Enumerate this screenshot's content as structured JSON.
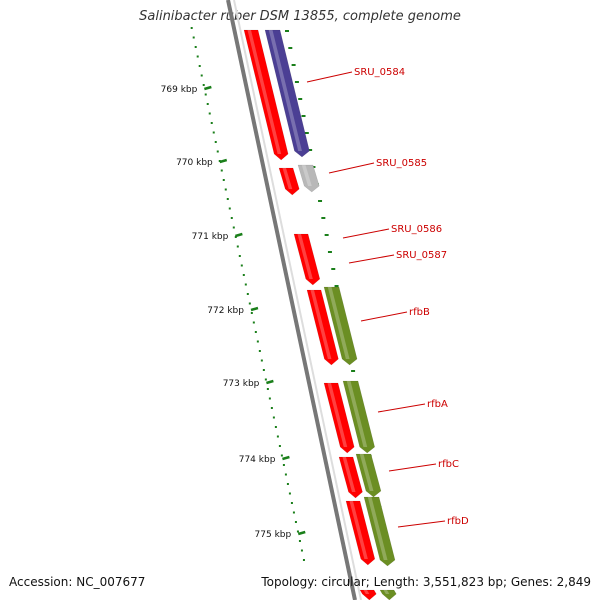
{
  "title": "Salinibacter ruber DSM 13855, complete genome",
  "accession_text": "Accession: NC_007677",
  "summary_text": "Topology: circular; Length: 3,551,823 bp; Genes: 2,849",
  "colors": {
    "cds_red": "#ff0000",
    "cds_purple": "#4b3f94",
    "cds_gray": "#b8b8b8",
    "cds_olive": "#6b8e23",
    "backbone": "#777777",
    "tick_green": "#1a7f1a",
    "label_red": "#cc0000"
  },
  "scale_labels": [
    {
      "text": "769 kbp",
      "kbp": 769
    },
    {
      "text": "770 kbp",
      "kbp": 770
    },
    {
      "text": "771 kbp",
      "kbp": 771
    },
    {
      "text": "772 kbp",
      "kbp": 772
    },
    {
      "text": "773 kbp",
      "kbp": 773
    },
    {
      "text": "774 kbp",
      "kbp": 774
    },
    {
      "text": "775 kbp",
      "kbp": 775
    }
  ],
  "genes": [
    {
      "label": "SRU_0584",
      "color": "purple"
    },
    {
      "label": "SRU_0585",
      "color": "gray"
    },
    {
      "label": "SRU_0586",
      "color": "red"
    },
    {
      "label": "SRU_0587",
      "color": "red"
    },
    {
      "label": "rfbB",
      "color": "olive"
    },
    {
      "label": "rfbA",
      "color": "olive"
    },
    {
      "label": "rfbC",
      "color": "olive"
    },
    {
      "label": "rfbD",
      "color": "olive"
    }
  ]
}
